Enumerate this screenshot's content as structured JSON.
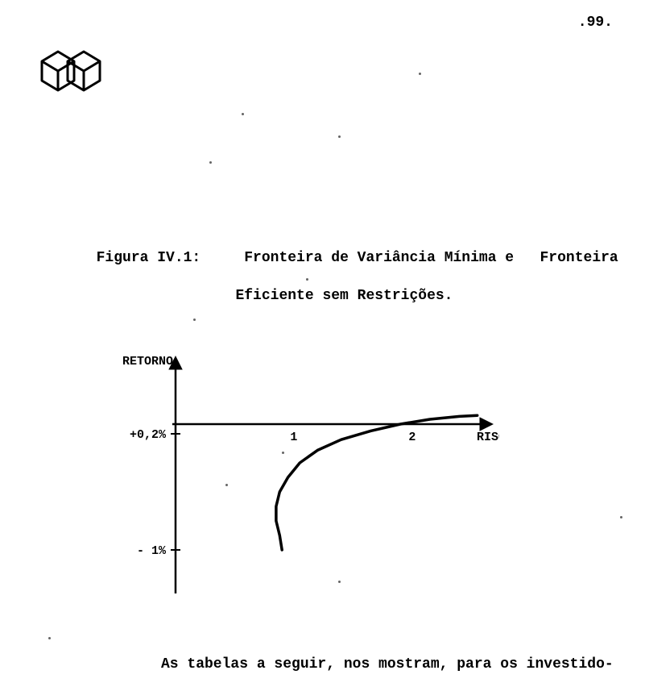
{
  "page_number": ".99.",
  "caption": {
    "label": "Figura IV.1:",
    "title_line1": "Fronteira de Variância Mínima e   Fronteira",
    "title_line2": "Eficiente sem Restrições."
  },
  "chart": {
    "type": "line",
    "y_label": "RETORNO",
    "x_label": "RISCO",
    "y_ticks": [
      {
        "label": "+0,2%",
        "value": 0.2
      },
      {
        "label": "- 1%",
        "value": -1.0
      }
    ],
    "x_ticks": [
      {
        "label": "1",
        "value": 1
      },
      {
        "label": "2",
        "value": 2
      }
    ],
    "xlim": [
      0,
      2.6
    ],
    "ylim": [
      -1.4,
      0.9
    ],
    "axis_y_at_x": 0,
    "axis_x_at_y": 0.3,
    "curve_points_xy": [
      [
        0.9,
        -1.0
      ],
      [
        0.88,
        -0.85
      ],
      [
        0.85,
        -0.7
      ],
      [
        0.85,
        -0.55
      ],
      [
        0.88,
        -0.4
      ],
      [
        0.95,
        -0.25
      ],
      [
        1.05,
        -0.1
      ],
      [
        1.2,
        0.03
      ],
      [
        1.4,
        0.14
      ],
      [
        1.65,
        0.23
      ],
      [
        1.9,
        0.3
      ],
      [
        2.15,
        0.35
      ],
      [
        2.4,
        0.38
      ],
      [
        2.55,
        0.39
      ]
    ],
    "colors": {
      "background": "#ffffff",
      "axis": "#000000",
      "curve": "#000000",
      "text": "#000000"
    },
    "line_width_axis": 2.5,
    "line_width_curve": 3.5,
    "label_fontsize": 15,
    "tick_fontsize": 15
  },
  "footer_text": "As tabelas a seguir, nos mostram, para os investido-",
  "logo": {
    "stroke": "#000000",
    "fill": "#ffffff",
    "stroke_width": 3
  }
}
